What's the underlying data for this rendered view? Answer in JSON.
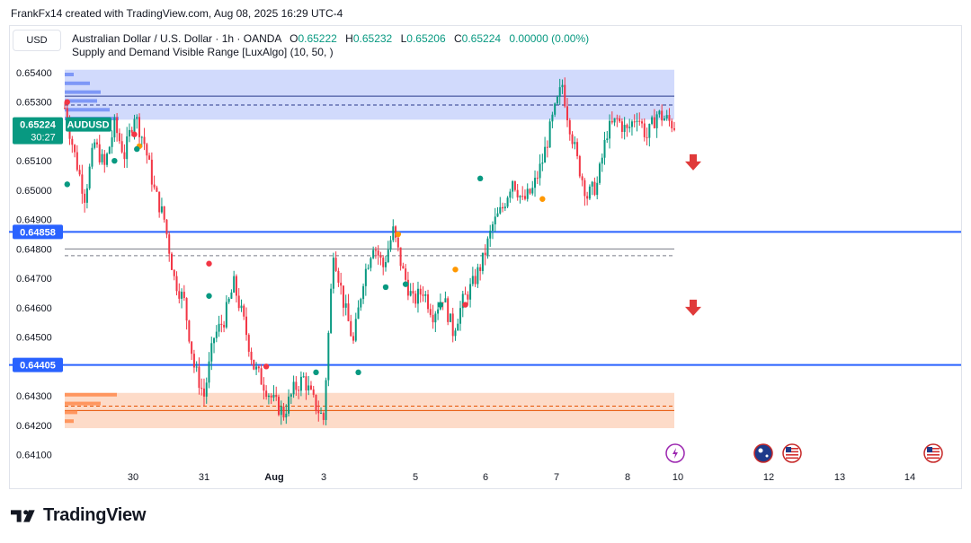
{
  "header": {
    "caption": "FrankFx14 created with TradingView.com, Aug 08, 2025 16:29 UTC-4",
    "currency_button": "USD",
    "symbol_line": "Australian Dollar / U.S. Dollar · 1h · OANDA",
    "ohlc": {
      "o_label": "O",
      "o_value": "0.65222",
      "h_label": "H",
      "h_value": "0.65232",
      "l_label": "L",
      "l_value": "0.65206",
      "c_label": "C",
      "c_value": "0.65224",
      "change": "0.00000 (0.00%)"
    },
    "indicator": "Supply and Demand Visible Range [LuxAlgo] (10, 50, )"
  },
  "brand": {
    "name": "TradingView"
  },
  "colors": {
    "up": "#089981",
    "down": "#f23645",
    "supply_zone": "#c9d4fb",
    "demand_zone": "#fdd7c2",
    "level_line": "#2962ff",
    "signal_orange": "#ff9800",
    "signal_red": "#f23645",
    "signal_teal": "#089981",
    "arrow_red": "#e03a3a"
  },
  "chart_data": {
    "type": "candlestick",
    "symbol": "AUDUSD",
    "timeframe": "1h",
    "y_axis": {
      "ticks": [
        "0.65400",
        "0.65300",
        "0.65100",
        "0.65000",
        "0.64900",
        "0.64800",
        "0.64700",
        "0.64600",
        "0.64500",
        "0.64300",
        "0.64200",
        "0.64100"
      ],
      "range": [
        0.6408,
        0.6543
      ]
    },
    "x_axis": {
      "ticks": [
        "30",
        "31",
        "Aug",
        "3",
        "5",
        "6",
        "7",
        "8",
        "10",
        "12",
        "13",
        "14"
      ]
    },
    "price_labels": {
      "current": {
        "price": "0.65224",
        "countdown": "30:27",
        "symbol": "AUDUSD"
      },
      "level_1": "0.64858",
      "level_2": "0.64405"
    },
    "horizontal_lines": [
      0.64858,
      0.64405
    ],
    "zones": {
      "supply": {
        "top": 0.6541,
        "bottom": 0.6524,
        "avg": 0.6529,
        "line": 0.6532
      },
      "equilibrium": {
        "top": 0.648,
        "avg": 0.64777
      },
      "demand": {
        "top": 0.6431,
        "bottom": 0.6419,
        "avg": 0.64265,
        "line": 0.6425
      }
    },
    "key_points": [
      {
        "t": 0,
        "p": 0.6528
      },
      {
        "t": 4,
        "p": 0.6512
      },
      {
        "t": 8,
        "p": 0.6498
      },
      {
        "t": 12,
        "p": 0.6516
      },
      {
        "t": 16,
        "p": 0.6508
      },
      {
        "t": 20,
        "p": 0.6522
      },
      {
        "t": 24,
        "p": 0.6512
      },
      {
        "t": 28,
        "p": 0.6526
      },
      {
        "t": 32,
        "p": 0.6516
      },
      {
        "t": 36,
        "p": 0.65
      },
      {
        "t": 40,
        "p": 0.649
      },
      {
        "t": 44,
        "p": 0.647
      },
      {
        "t": 48,
        "p": 0.6462
      },
      {
        "t": 52,
        "p": 0.644
      },
      {
        "t": 56,
        "p": 0.643
      },
      {
        "t": 60,
        "p": 0.645
      },
      {
        "t": 64,
        "p": 0.6456
      },
      {
        "t": 68,
        "p": 0.6468
      },
      {
        "t": 72,
        "p": 0.6455
      },
      {
        "t": 76,
        "p": 0.644
      },
      {
        "t": 80,
        "p": 0.6434
      },
      {
        "t": 84,
        "p": 0.6428
      },
      {
        "t": 88,
        "p": 0.6424
      },
      {
        "t": 92,
        "p": 0.6432
      },
      {
        "t": 96,
        "p": 0.6436
      },
      {
        "t": 100,
        "p": 0.6428
      },
      {
        "t": 104,
        "p": 0.6422
      },
      {
        "t": 108,
        "p": 0.648
      },
      {
        "t": 112,
        "p": 0.6462
      },
      {
        "t": 116,
        "p": 0.6448
      },
      {
        "t": 120,
        "p": 0.647
      },
      {
        "t": 124,
        "p": 0.6482
      },
      {
        "t": 128,
        "p": 0.6474
      },
      {
        "t": 132,
        "p": 0.6486
      },
      {
        "t": 136,
        "p": 0.6472
      },
      {
        "t": 140,
        "p": 0.6462
      },
      {
        "t": 144,
        "p": 0.6466
      },
      {
        "t": 148,
        "p": 0.6458
      },
      {
        "t": 152,
        "p": 0.6464
      },
      {
        "t": 156,
        "p": 0.6452
      },
      {
        "t": 160,
        "p": 0.6462
      },
      {
        "t": 164,
        "p": 0.6468
      },
      {
        "t": 168,
        "p": 0.6476
      },
      {
        "t": 172,
        "p": 0.6488
      },
      {
        "t": 176,
        "p": 0.6494
      },
      {
        "t": 180,
        "p": 0.6504
      },
      {
        "t": 184,
        "p": 0.6496
      },
      {
        "t": 188,
        "p": 0.65
      },
      {
        "t": 192,
        "p": 0.651
      },
      {
        "t": 196,
        "p": 0.6524
      },
      {
        "t": 200,
        "p": 0.6536
      },
      {
        "t": 202,
        "p": 0.6526
      },
      {
        "t": 206,
        "p": 0.651
      },
      {
        "t": 210,
        "p": 0.6498
      },
      {
        "t": 214,
        "p": 0.6502
      },
      {
        "t": 218,
        "p": 0.652
      },
      {
        "t": 222,
        "p": 0.6524
      },
      {
        "t": 226,
        "p": 0.652
      },
      {
        "t": 230,
        "p": 0.6526
      },
      {
        "t": 234,
        "p": 0.6518
      },
      {
        "t": 238,
        "p": 0.6526
      },
      {
        "t": 242,
        "p": 0.6524
      },
      {
        "t": 245,
        "p": 0.6522
      }
    ],
    "signals": [
      {
        "t": 1,
        "p": 0.653,
        "c": "red"
      },
      {
        "t": 1,
        "p": 0.6502,
        "c": "teal"
      },
      {
        "t": 20,
        "p": 0.651,
        "c": "teal"
      },
      {
        "t": 28,
        "p": 0.6519,
        "c": "red"
      },
      {
        "t": 30,
        "p": 0.6515,
        "c": "orange"
      },
      {
        "t": 29,
        "p": 0.6514,
        "c": "teal"
      },
      {
        "t": 58,
        "p": 0.6475,
        "c": "red"
      },
      {
        "t": 58,
        "p": 0.6464,
        "c": "teal"
      },
      {
        "t": 81,
        "p": 0.644,
        "c": "red"
      },
      {
        "t": 101,
        "p": 0.6438,
        "c": "teal"
      },
      {
        "t": 118,
        "p": 0.6438,
        "c": "teal"
      },
      {
        "t": 134,
        "p": 0.6485,
        "c": "orange"
      },
      {
        "t": 129,
        "p": 0.6467,
        "c": "teal"
      },
      {
        "t": 137,
        "p": 0.6468,
        "c": "teal"
      },
      {
        "t": 151,
        "p": 0.6461,
        "c": "teal"
      },
      {
        "t": 157,
        "p": 0.6473,
        "c": "orange"
      },
      {
        "t": 161,
        "p": 0.6461,
        "c": "red"
      },
      {
        "t": 167,
        "p": 0.6504,
        "c": "teal"
      },
      {
        "t": 192,
        "p": 0.6497,
        "c": "orange"
      }
    ],
    "markers": [
      {
        "p": 0.65095,
        "icon": "sell-arrow-icon"
      },
      {
        "p": 0.646,
        "icon": "sell-arrow-icon"
      }
    ],
    "events": [
      {
        "x_tick": "10",
        "icon": "lightning-icon"
      },
      {
        "x_tick": "12",
        "icon": "australia-flag-icon"
      },
      {
        "x_tick": "12",
        "icon": "us-flag-icon"
      },
      {
        "x_tick": "14",
        "icon": "us-flag-icon"
      }
    ]
  }
}
